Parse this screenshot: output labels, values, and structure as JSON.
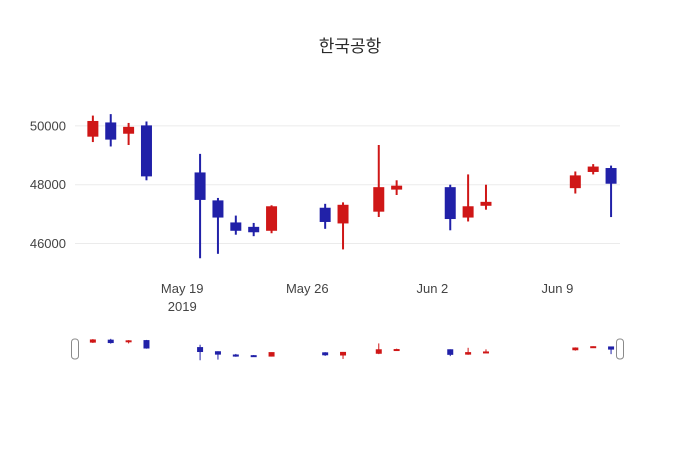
{
  "title": "한국공항",
  "chart_data": {
    "type": "candlestick",
    "title": "한국공항",
    "legend": "none",
    "grid": "horizontal-light",
    "colors": {
      "increasing": "#cf1717",
      "decreasing": "#2121a8",
      "grid": "#ebebeb",
      "tick_text": "#444444"
    },
    "x_range": [
      "2019-05-13",
      "2019-06-12"
    ],
    "y_range": [
      45100,
      51050
    ],
    "y_ticks": [
      46000,
      48000,
      50000
    ],
    "x_ticks": [
      {
        "date": "2019-05-19",
        "label": "May 19",
        "sublabel": "2019"
      },
      {
        "date": "2019-05-26",
        "label": "May 26",
        "sublabel": ""
      },
      {
        "date": "2019-06-02",
        "label": "Jun 2",
        "sublabel": ""
      },
      {
        "date": "2019-06-09",
        "label": "Jun 9",
        "sublabel": ""
      }
    ],
    "rangeslider": true,
    "ohlc": [
      {
        "date": "2019-05-14",
        "open": 49650,
        "high": 50350,
        "low": 49450,
        "close": 50150
      },
      {
        "date": "2019-05-15",
        "open": 50100,
        "high": 50400,
        "low": 49300,
        "close": 49550
      },
      {
        "date": "2019-05-16",
        "open": 49750,
        "high": 50100,
        "low": 49350,
        "close": 49950
      },
      {
        "date": "2019-05-17",
        "open": 50000,
        "high": 50150,
        "low": 48150,
        "close": 48300
      },
      {
        "date": "2019-05-20",
        "open": 48400,
        "high": 49050,
        "low": 45500,
        "close": 47500
      },
      {
        "date": "2019-05-21",
        "open": 47450,
        "high": 47550,
        "low": 45650,
        "close": 46900
      },
      {
        "date": "2019-05-22",
        "open": 46700,
        "high": 46950,
        "low": 46300,
        "close": 46450
      },
      {
        "date": "2019-05-23",
        "open": 46550,
        "high": 46700,
        "low": 46250,
        "close": 46400
      },
      {
        "date": "2019-05-24",
        "open": 46450,
        "high": 47300,
        "low": 46350,
        "close": 47250
      },
      {
        "date": "2019-05-27",
        "open": 47200,
        "high": 47350,
        "low": 46500,
        "close": 46750
      },
      {
        "date": "2019-05-28",
        "open": 46700,
        "high": 47400,
        "low": 45800,
        "close": 47300
      },
      {
        "date": "2019-05-30",
        "open": 47100,
        "high": 49350,
        "low": 46900,
        "close": 47900
      },
      {
        "date": "2019-05-31",
        "open": 47850,
        "high": 48150,
        "low": 47650,
        "close": 47950
      },
      {
        "date": "2019-06-03",
        "open": 47900,
        "high": 48000,
        "low": 46450,
        "close": 46850
      },
      {
        "date": "2019-06-04",
        "open": 46900,
        "high": 48350,
        "low": 46750,
        "close": 47250
      },
      {
        "date": "2019-06-05",
        "open": 47300,
        "high": 48000,
        "low": 47150,
        "close": 47400
      },
      {
        "date": "2019-06-10",
        "open": 47900,
        "high": 48450,
        "low": 47700,
        "close": 48300
      },
      {
        "date": "2019-06-11",
        "open": 48450,
        "high": 48700,
        "low": 48350,
        "close": 48600
      },
      {
        "date": "2019-06-12",
        "open": 48550,
        "high": 48650,
        "low": 46900,
        "close": 48050
      }
    ]
  }
}
